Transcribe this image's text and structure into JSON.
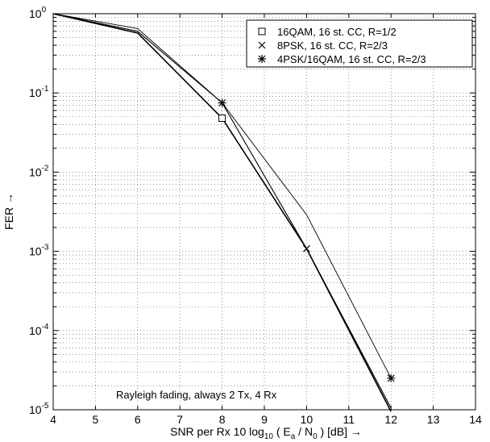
{
  "chart_data": {
    "type": "line",
    "xscale": "linear",
    "yscale": "log",
    "xlim": [
      4,
      14
    ],
    "ylim": [
      1e-05,
      1
    ],
    "grid": true,
    "legend_position": "top-right",
    "xticks": [
      "4",
      "5",
      "6",
      "7",
      "8",
      "9",
      "10",
      "11",
      "12",
      "13",
      "14"
    ],
    "yticks": [
      {
        "base": "10",
        "exp": "0"
      },
      {
        "base": "10",
        "exp": "-1"
      },
      {
        "base": "10",
        "exp": "-2"
      },
      {
        "base": "10",
        "exp": "-3"
      },
      {
        "base": "10",
        "exp": "-4"
      },
      {
        "base": "10",
        "exp": "-5"
      }
    ],
    "xlabel": {
      "prefix": "SNR per Rx   10 log",
      "sub1": "10",
      "mid1": " ( E",
      "sub2": "a",
      "mid2": " / N",
      "sub3": "0",
      "suffix": " )  [dB]  →"
    },
    "ylabel": "FER  →",
    "annotation": "Rayleigh fading, always 2 Tx, 4 Rx",
    "series": [
      {
        "name": "16QAM, 16 st. CC, R=1/2",
        "marker": "square",
        "x": [
          4,
          6,
          8,
          10,
          12
        ],
        "y": [
          1.0,
          0.57,
          0.048,
          0.00108,
          9.5e-06
        ],
        "marked_x": [
          8
        ]
      },
      {
        "name": "8PSK, 16 st. CC, R=2/3",
        "marker": "x",
        "x": [
          4,
          6,
          8,
          10,
          12
        ],
        "y": [
          1.0,
          0.6,
          0.075,
          0.00108,
          1.05e-05
        ],
        "marked_x": [
          10
        ]
      },
      {
        "name": "4PSK/16QAM, 16 st. CC, R=2/3",
        "marker": "star",
        "x": [
          4,
          6,
          8,
          10,
          12
        ],
        "y": [
          1.0,
          0.65,
          0.075,
          0.0029,
          2.5e-05
        ],
        "marked_x": [
          8,
          12
        ]
      }
    ]
  }
}
